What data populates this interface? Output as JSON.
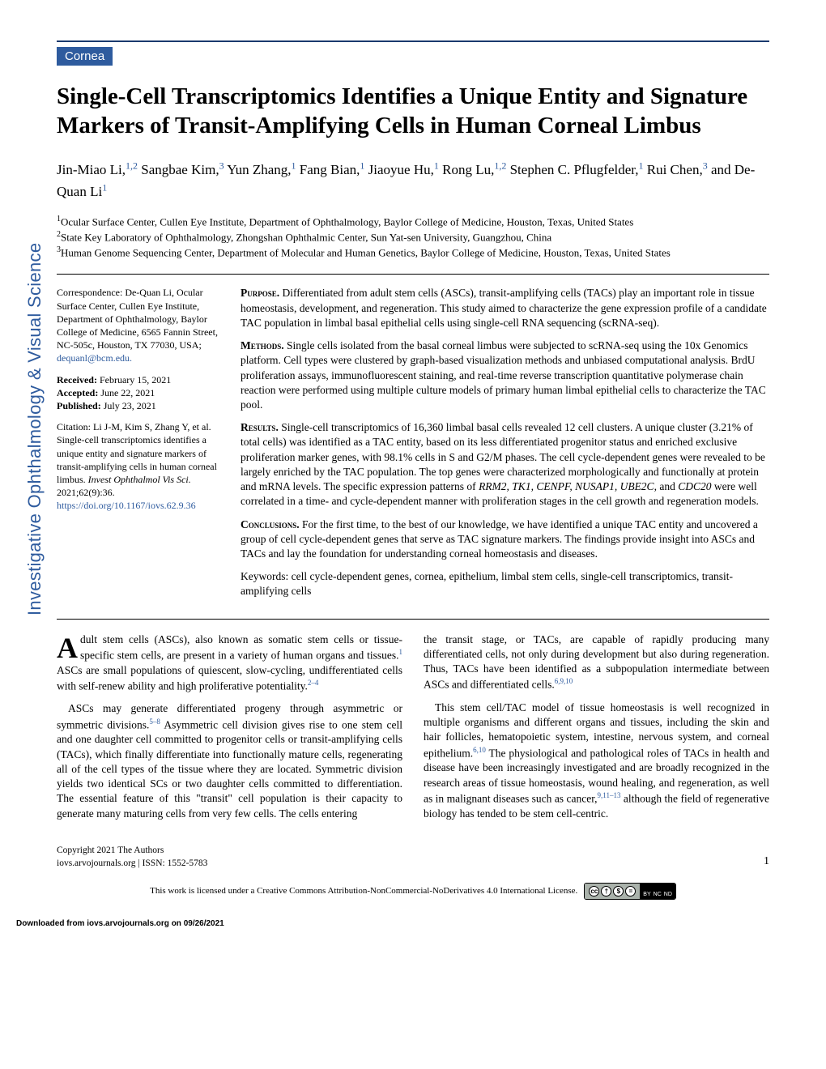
{
  "journal_vertical": "Investigative Ophthalmology & Visual Science",
  "category": "Cornea",
  "title": "Single-Cell Transcriptomics Identifies a Unique Entity and Signature Markers of Transit-Amplifying Cells in Human Corneal Limbus",
  "authors": [
    {
      "name": "Jin-Miao Li,",
      "aff": "1,2"
    },
    {
      "name": "Sangbae Kim,",
      "aff": "3"
    },
    {
      "name": "Yun Zhang,",
      "aff": "1"
    },
    {
      "name": "Fang Bian,",
      "aff": "1"
    },
    {
      "name": "Jiaoyue Hu,",
      "aff": "1"
    },
    {
      "name": "Rong Lu,",
      "aff": "1,2"
    },
    {
      "name": "Stephen C. Pflugfelder,",
      "aff": "1"
    },
    {
      "name": "Rui Chen,",
      "aff": "3"
    },
    {
      "name": "and De-Quan Li",
      "aff": "1"
    }
  ],
  "affiliations": [
    {
      "num": "1",
      "text": "Ocular Surface Center, Cullen Eye Institute, Department of Ophthalmology, Baylor College of Medicine, Houston, Texas, United States"
    },
    {
      "num": "2",
      "text": "State Key Laboratory of Ophthalmology, Zhongshan Ophthalmic Center, Sun Yat-sen University, Guangzhou, China"
    },
    {
      "num": "3",
      "text": "Human Genome Sequencing Center, Department of Molecular and Human Genetics, Baylor College of Medicine, Houston, Texas, United States"
    }
  ],
  "correspondence": {
    "label": "Correspondence:",
    "text": "De-Quan Li, Ocular Surface Center, Cullen Eye Institute, Department of Ophthalmology, Baylor College of Medicine, 6565 Fannin Street, NC-505c, Houston, TX 77030, USA;",
    "email": "dequanl@bcm.edu."
  },
  "dates": {
    "received_label": "Received:",
    "received": "February 15, 2021",
    "accepted_label": "Accepted:",
    "accepted": "June 22, 2021",
    "published_label": "Published:",
    "published": "July 23, 2021"
  },
  "citation": {
    "text": "Citation: Li J-M, Kim S, Zhang Y, et al. Single-cell transcriptomics identifies a unique entity and signature markers of transit-amplifying cells in human corneal limbus. ",
    "journal": "Invest Ophthalmol Vis Sci.",
    "ref": " 2021;62(9):36.",
    "doi": "https://doi.org/10.1167/iovs.62.9.36"
  },
  "abstract": {
    "purpose_h": "Purpose.",
    "purpose": " Differentiated from adult stem cells (ASCs), transit-amplifying cells (TACs) play an important role in tissue homeostasis, development, and regeneration. This study aimed to characterize the gene expression profile of a candidate TAC population in limbal basal epithelial cells using single-cell RNA sequencing (scRNA-seq).",
    "methods_h": "Methods.",
    "methods": " Single cells isolated from the basal corneal limbus were subjected to scRNA-seq using the 10x Genomics platform. Cell types were clustered by graph-based visualization methods and unbiased computational analysis. BrdU proliferation assays, immunofluorescent staining, and real-time reverse transcription quantitative polymerase chain reaction were performed using multiple culture models of primary human limbal epithelial cells to characterize the TAC pool.",
    "results_h": "Results.",
    "results": " Single-cell transcriptomics of 16,360 limbal basal cells revealed 12 cell clusters. A unique cluster (3.21% of total cells) was identified as a TAC entity, based on its less differentiated progenitor status and enriched exclusive proliferation marker genes, with 98.1% cells in S and G2/M phases. The cell cycle-dependent genes were revealed to be largely enriched by the TAC population. The top genes were characterized morphologically and functionally at protein and mRNA levels. The specific expression patterns of ",
    "results_genes": "RRM2, TK1, CENPF, NUSAP1, UBE2C,",
    "results2": " and ",
    "results_gene2": "CDC20",
    "results3": " were well correlated in a time- and cycle-dependent manner with proliferation stages in the cell growth and regeneration models.",
    "conclusions_h": "Conclusions.",
    "conclusions": " For the first time, to the best of our knowledge, we have identified a unique TAC entity and uncovered a group of cell cycle-dependent genes that serve as TAC signature markers. The findings provide insight into ASCs and TACs and lay the foundation for understanding corneal homeostasis and diseases.",
    "keywords": "Keywords: cell cycle-dependent genes, cornea, epithelium, limbal stem cells, single-cell transcriptomics, transit-amplifying cells"
  },
  "body": {
    "col1_p1_drop": "A",
    "col1_p1": "dult stem cells (ASCs), also known as somatic stem cells or tissue-specific stem cells, are present in a variety of human organs and tissues.",
    "col1_p1_ref1": "1",
    "col1_p1b": " ASCs are small populations of quiescent, slow-cycling, undifferentiated cells with self-renew ability and high proliferative potentiality.",
    "col1_p1_ref2": "2–4",
    "col1_p2a": "ASCs may generate differentiated progeny through asymmetric or symmetric divisions.",
    "col1_p2_ref": "5–8",
    "col1_p2b": " Asymmetric cell division gives rise to one stem cell and one daughter cell committed to progenitor cells or transit-amplifying cells (TACs), which finally differentiate into functionally mature cells, regenerating all of the cell types of the tissue where they are located. Symmetric division yields two identical SCs or two daughter cells committed to differentiation. The essential feature of this \"transit\" cell population is their capacity to generate many maturing cells from very few cells. The cells entering",
    "col2_p1": "the transit stage, or TACs, are capable of rapidly producing many differentiated cells, not only during development but also during regeneration. Thus, TACs have been identified as a subpopulation intermediate between ASCs and differentiated cells.",
    "col2_p1_ref": "6,9,10",
    "col2_p2a": "This stem cell/TAC model of tissue homeostasis is well recognized in multiple organisms and different organs and tissues, including the skin and hair follicles, hematopoietic system, intestine, nervous system, and corneal epithelium.",
    "col2_p2_ref1": "6,10",
    "col2_p2b": " The physiological and pathological roles of TACs in health and disease have been increasingly investigated and are broadly recognized in the research areas of tissue homeostasis, wound healing, and regeneration, as well as in malignant diseases such as cancer,",
    "col2_p2_ref2": "9,11–13",
    "col2_p2c": " although the field of regenerative biology has tended to be stem cell-centric."
  },
  "footer": {
    "copyright": "Copyright 2021 The Authors",
    "site": "iovs.arvojournals.org | ISSN: 1552-5783",
    "page": "1",
    "license": "This work is licensed under a Creative Commons Attribution-NonCommercial-NoDerivatives 4.0 International License.",
    "cc_labels": [
      "BY",
      "NC",
      "ND"
    ]
  },
  "download": "Downloaded from iovs.arvojournals.org on 09/26/2021"
}
